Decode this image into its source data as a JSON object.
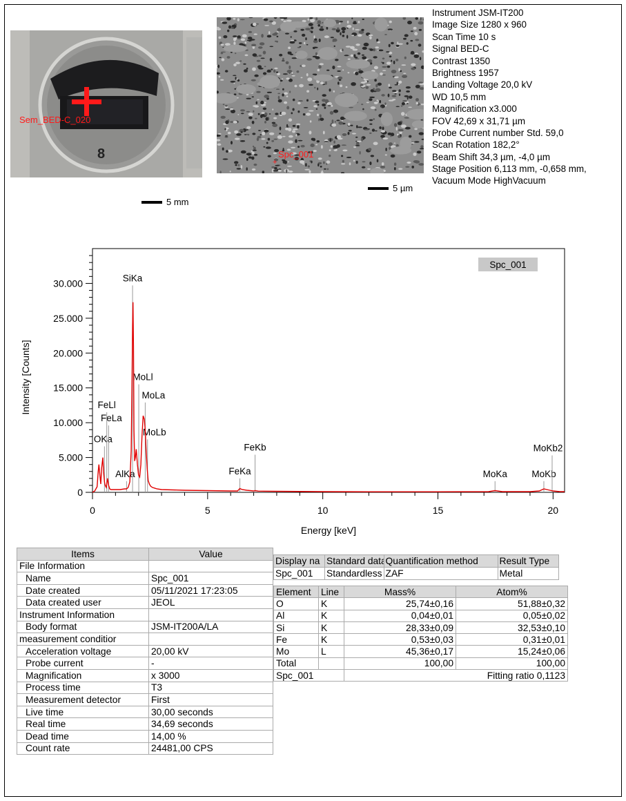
{
  "optical_image": {
    "marker_label": "Sem_BED-C_020",
    "scale_label": "5 mm"
  },
  "sem_image": {
    "marker_label": "Spc_001",
    "scale_label": "5 µm"
  },
  "metadata": [
    "Instrument JSM-IT200",
    "Image Size 1280 x 960",
    "Scan Time 10 s",
    "Signal BED-C",
    "Contrast 1350",
    "Brightness 1957",
    "Landing Voltage 20,0 kV",
    "WD 10,5 mm",
    "Magnification x3.000",
    "FOV 42,69 x 31,71 µm",
    "Probe Current number Std. 59,0",
    "Scan Rotation 182,2°",
    "Beam Shift 34,3 µm, -4,0 µm",
    "Stage Position 6,113 mm, -0,658 mm,",
    "Vacuum Mode HighVacuum"
  ],
  "colors": {
    "spectrum": "#e00000",
    "marker": "#ff1a1a",
    "header_bg": "#d9d9d9",
    "legend_bg": "#c8c8c8"
  },
  "chart_data": {
    "type": "line",
    "legend": "Spc_001",
    "xlabel": "Energy [keV]",
    "ylabel": "Intensity [Counts]",
    "xlim": [
      0,
      20.5
    ],
    "ylim": [
      0,
      35000
    ],
    "x_ticks": [
      "0",
      "5",
      "10",
      "15",
      "20"
    ],
    "y_ticks": [
      "0",
      "5.000",
      "10.000",
      "15.000",
      "20.000",
      "25.000",
      "30.000"
    ],
    "series": [
      {
        "name": "Spc_001",
        "x": [
          0,
          0.1,
          0.2,
          0.25,
          0.28,
          0.32,
          0.36,
          0.4,
          0.45,
          0.48,
          0.52,
          0.55,
          0.6,
          0.65,
          0.7,
          0.75,
          0.8,
          0.9,
          1.0,
          1.2,
          1.4,
          1.48,
          1.55,
          1.62,
          1.68,
          1.72,
          1.74,
          1.76,
          1.78,
          1.8,
          1.83,
          1.86,
          1.9,
          1.95,
          2.0,
          2.05,
          2.1,
          2.15,
          2.2,
          2.25,
          2.29,
          2.33,
          2.38,
          2.42,
          2.47,
          2.52,
          2.6,
          2.7,
          2.8,
          3.0,
          3.5,
          4.0,
          5.0,
          6.0,
          6.3,
          6.4,
          6.5,
          6.7,
          7.0,
          7.06,
          7.2,
          8.0,
          10.0,
          12.0,
          15.0,
          17.2,
          17.48,
          17.8,
          19.0,
          19.4,
          19.6,
          19.8,
          20.0,
          20.3,
          20.5
        ],
        "values": [
          0,
          200,
          800,
          3000,
          4000,
          2500,
          1200,
          3500,
          5000,
          3000,
          1500,
          1000,
          700,
          2000,
          1000,
          500,
          400,
          400,
          400,
          400,
          500,
          500,
          700,
          1500,
          6000,
          17000,
          24000,
          27300,
          21000,
          9000,
          4500,
          5000,
          6200,
          4000,
          2500,
          2200,
          4000,
          8000,
          11000,
          10500,
          9000,
          6000,
          3200,
          1700,
          1200,
          900,
          700,
          600,
          500,
          400,
          350,
          300,
          250,
          200,
          200,
          550,
          400,
          300,
          200,
          250,
          180,
          150,
          100,
          80,
          80,
          100,
          250,
          100,
          100,
          200,
          500,
          350,
          200,
          100,
          100
        ]
      }
    ],
    "peaks": [
      {
        "label": "OKa",
        "x": 0.52
      },
      {
        "label": "FeLa",
        "x": 0.7
      },
      {
        "label": "FeLl",
        "x": 0.62
      },
      {
        "label": "AlKa",
        "x": 1.48
      },
      {
        "label": "SiKa",
        "x": 1.74
      },
      {
        "label": "MoLl",
        "x": 2.01
      },
      {
        "label": "MoLa",
        "x": 2.29
      },
      {
        "label": "MoLb",
        "x": 2.39
      },
      {
        "label": "FeKa",
        "x": 6.4
      },
      {
        "label": "FeKb",
        "x": 7.06
      },
      {
        "label": "MoKa",
        "x": 17.48
      },
      {
        "label": "MoKb",
        "x": 19.6
      },
      {
        "label": "MoKb2",
        "x": 19.96
      }
    ]
  },
  "items_table": {
    "headers": [
      "Items",
      "Value"
    ],
    "rows": [
      {
        "item": "File Information",
        "value": "",
        "indent": false
      },
      {
        "item": "Name",
        "value": "Spc_001",
        "indent": true
      },
      {
        "item": "Date created",
        "value": "05/11/2021 17:23:05",
        "indent": true
      },
      {
        "item": "Data created user",
        "value": "JEOL",
        "indent": true
      },
      {
        "item": "Instrument Information",
        "value": "",
        "indent": false
      },
      {
        "item": "Body format",
        "value": "JSM-IT200A/LA",
        "indent": true
      },
      {
        "item": "measurement conditior",
        "value": "",
        "indent": false
      },
      {
        "item": "Acceleration voltage",
        "value": "20,00 kV",
        "indent": true
      },
      {
        "item": "Probe current",
        "value": "-",
        "indent": true
      },
      {
        "item": "Magnification",
        "value": "x 3000",
        "indent": true
      },
      {
        "item": "Process time",
        "value": "T3",
        "indent": true
      },
      {
        "item": "Measurement detector",
        "value": "First",
        "indent": true
      },
      {
        "item": "Live time",
        "value": "30,00 seconds",
        "indent": true
      },
      {
        "item": "Real time",
        "value": "34,69 seconds",
        "indent": true
      },
      {
        "item": "Dead time",
        "value": "14,00 %",
        "indent": true
      },
      {
        "item": "Count rate",
        "value": "24481,00 CPS",
        "indent": true
      }
    ]
  },
  "display_table": {
    "headers": [
      "Display na",
      "Standard data",
      "Quantification method",
      "Result Type"
    ],
    "row": [
      "Spc_001",
      "Standardless",
      "ZAF",
      "Metal"
    ]
  },
  "quant_table": {
    "headers": [
      "Element",
      "Line",
      "Mass%",
      "Atom%"
    ],
    "rows": [
      [
        "O",
        "K",
        "25,74±0,16",
        "51,88±0,32"
      ],
      [
        "Al",
        "K",
        "0,04±0,01",
        "0,05±0,02"
      ],
      [
        "Si",
        "K",
        "28,33±0,09",
        "32,53±0,10"
      ],
      [
        "Fe",
        "K",
        "0,53±0,03",
        "0,31±0,01"
      ],
      [
        "Mo",
        "L",
        "45,36±0,17",
        "15,24±0,06"
      ]
    ],
    "total": [
      "Total",
      "",
      "100,00",
      "100,00"
    ],
    "footer_name": "Spc_001",
    "fitting_ratio": "Fitting ratio 0,1123"
  }
}
